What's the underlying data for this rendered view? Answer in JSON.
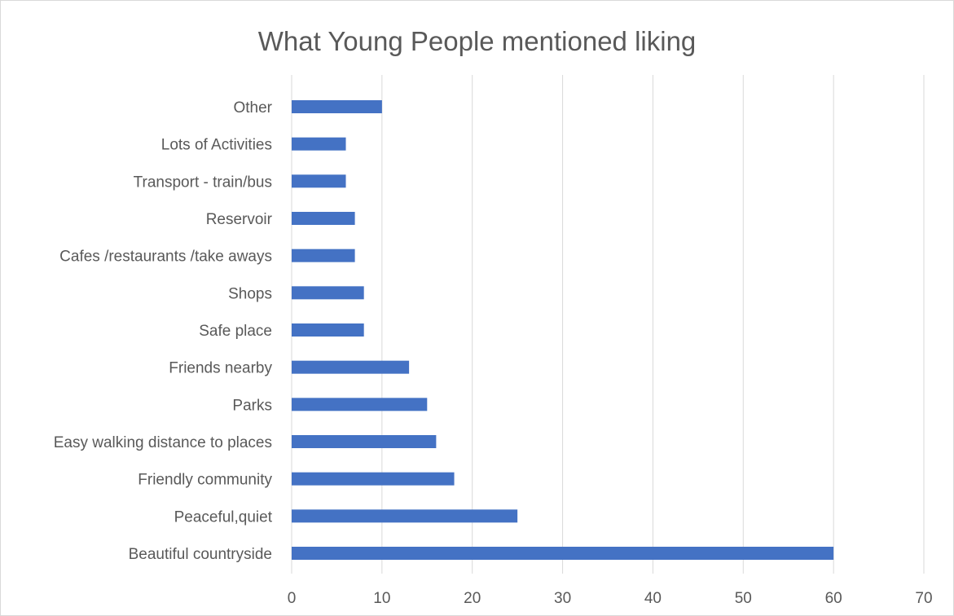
{
  "chart_data": {
    "type": "bar",
    "orientation": "horizontal",
    "title": "What Young People mentioned liking",
    "xlabel": "",
    "ylabel": "",
    "categories": [
      "Beautiful countryside",
      "Peaceful,quiet",
      "Friendly community",
      "Easy walking distance to places",
      "Parks",
      "Friends nearby",
      "Safe place",
      "Shops",
      "Cafes /restaurants /take aways",
      "Reservoir",
      "Transport - train/bus",
      "Lots of Activities",
      "Other"
    ],
    "values": [
      60,
      25,
      18,
      16,
      15,
      13,
      8,
      8,
      7,
      7,
      6,
      6,
      10
    ],
    "xlim": [
      0,
      70
    ],
    "xticks": [
      "0",
      "10",
      "20",
      "30",
      "40",
      "50",
      "60",
      "70"
    ],
    "grid": "vertical",
    "bar_color": "#4472c4",
    "legend": "none"
  }
}
